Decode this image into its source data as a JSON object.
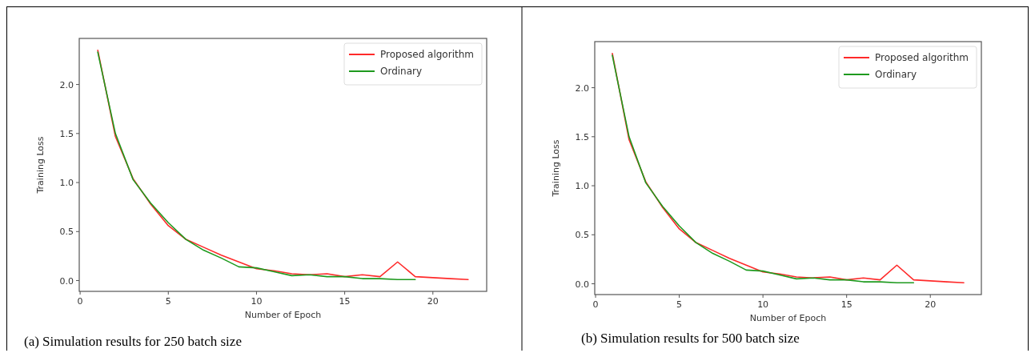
{
  "chart_data": [
    {
      "type": "line",
      "xlabel": "Number of Epoch",
      "ylabel": "Training Loss",
      "annotations": [
        "(a) Simulation results for 250 batch size"
      ],
      "legend": "top right",
      "grid": false,
      "xlim": [
        -0.05,
        23.05
      ],
      "xticks": [
        0,
        5,
        10,
        15,
        20
      ],
      "ylim": [
        -0.11,
        2.47
      ],
      "yticks": [
        {
          "value": 0,
          "label": "0.0"
        },
        {
          "value": 0.5,
          "label": "0.5"
        },
        {
          "value": 1,
          "label": "1.0"
        },
        {
          "value": 1.5,
          "label": "1.5"
        },
        {
          "value": 2,
          "label": "2.0"
        }
      ],
      "series": [
        {
          "name": "Proposed algorithm",
          "color": "#ff2a2a",
          "x": [
            1,
            2,
            3,
            4,
            5,
            6,
            7,
            8,
            9,
            10,
            11,
            12,
            13,
            14,
            15,
            16,
            17,
            18,
            19,
            20,
            21,
            22
          ],
          "values": [
            2.35,
            1.47,
            1.04,
            0.78,
            0.56,
            0.42,
            0.34,
            0.26,
            0.19,
            0.12,
            0.1,
            0.07,
            0.06,
            0.07,
            0.04,
            0.06,
            0.04,
            0.19,
            0.04,
            0.03,
            0.02,
            0.01
          ]
        },
        {
          "name": "Ordinary",
          "color": "#1e9a1e",
          "x": [
            1,
            2,
            3,
            4,
            5,
            6,
            7,
            8,
            9,
            10,
            11,
            12,
            13,
            14,
            15,
            16,
            17,
            18,
            19
          ],
          "values": [
            2.33,
            1.5,
            1.03,
            0.79,
            0.59,
            0.42,
            0.31,
            0.23,
            0.14,
            0.13,
            0.09,
            0.05,
            0.06,
            0.04,
            0.04,
            0.02,
            0.02,
            0.01,
            0.01
          ]
        }
      ]
    },
    {
      "type": "line",
      "xlabel": "Number of Epoch",
      "ylabel": "Training Loss",
      "annotations": [
        "(b) Simulation results for 500 batch size"
      ],
      "legend": "top right",
      "grid": false,
      "xlim": [
        -0.05,
        23.05
      ],
      "xticks": [
        0,
        5,
        10,
        15,
        20
      ],
      "ylim": [
        -0.11,
        2.47
      ],
      "yticks": [
        {
          "value": 0,
          "label": "0.0"
        },
        {
          "value": 0.5,
          "label": "0.5"
        },
        {
          "value": 1,
          "label": "1.0"
        },
        {
          "value": 1.5,
          "label": "1.5"
        },
        {
          "value": 2,
          "label": "2.0"
        }
      ],
      "series": [
        {
          "name": "Proposed algorithm",
          "color": "#ff2a2a",
          "x": [
            1,
            2,
            3,
            4,
            5,
            6,
            7,
            8,
            9,
            10,
            11,
            12,
            13,
            14,
            15,
            16,
            17,
            18,
            19,
            20,
            21,
            22
          ],
          "values": [
            2.35,
            1.47,
            1.04,
            0.78,
            0.56,
            0.42,
            0.34,
            0.26,
            0.19,
            0.12,
            0.1,
            0.07,
            0.06,
            0.07,
            0.04,
            0.06,
            0.04,
            0.19,
            0.04,
            0.03,
            0.02,
            0.01
          ]
        },
        {
          "name": "Ordinary",
          "color": "#1e9a1e",
          "x": [
            1,
            2,
            3,
            4,
            5,
            6,
            7,
            8,
            9,
            10,
            11,
            12,
            13,
            14,
            15,
            16,
            17,
            18,
            19
          ],
          "values": [
            2.33,
            1.5,
            1.03,
            0.79,
            0.59,
            0.42,
            0.31,
            0.23,
            0.14,
            0.13,
            0.09,
            0.05,
            0.06,
            0.04,
            0.04,
            0.02,
            0.02,
            0.01,
            0.01
          ]
        }
      ]
    }
  ]
}
